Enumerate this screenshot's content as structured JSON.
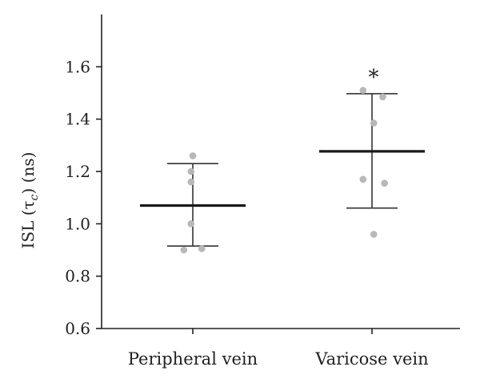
{
  "chart_data": {
    "type": "scatter",
    "title": "",
    "xlabel": "",
    "ylabel": "ISL (τ",
    "ylabel_subscript": "c",
    "ylabel_unit": ") (ns)",
    "ylim": [
      0.6,
      1.8
    ],
    "yticks": [
      "0.6",
      "0.8",
      "1.0",
      "1.2",
      "1.4",
      "1.6"
    ],
    "categories": [
      "Peripheral vein",
      "Varicose vein"
    ],
    "groups": [
      {
        "category": "Peripheral vein",
        "mean": 1.07,
        "error_low": 0.915,
        "error_high": 1.23,
        "points": [
          {
            "dx": 0.0,
            "y": 1.26
          },
          {
            "dx": -0.01,
            "y": 1.2
          },
          {
            "dx": -0.01,
            "y": 1.16
          },
          {
            "dx": -0.01,
            "y": 1.0
          },
          {
            "dx": -0.05,
            "y": 0.9
          },
          {
            "dx": 0.05,
            "y": 0.905
          }
        ]
      },
      {
        "category": "Varicose vein",
        "mean": 1.277,
        "error_low": 1.06,
        "error_high": 1.497,
        "significance": "*",
        "points": [
          {
            "dx": -0.05,
            "y": 1.51
          },
          {
            "dx": 0.06,
            "y": 1.485
          },
          {
            "dx": 0.01,
            "y": 1.385
          },
          {
            "dx": -0.05,
            "y": 1.17
          },
          {
            "dx": 0.07,
            "y": 1.155
          },
          {
            "dx": 0.01,
            "y": 0.96
          }
        ]
      }
    ],
    "colors": {
      "points": "#b8b8b8",
      "mean": "#1a1a1a",
      "error": "#333333",
      "axis": "#222222"
    }
  }
}
